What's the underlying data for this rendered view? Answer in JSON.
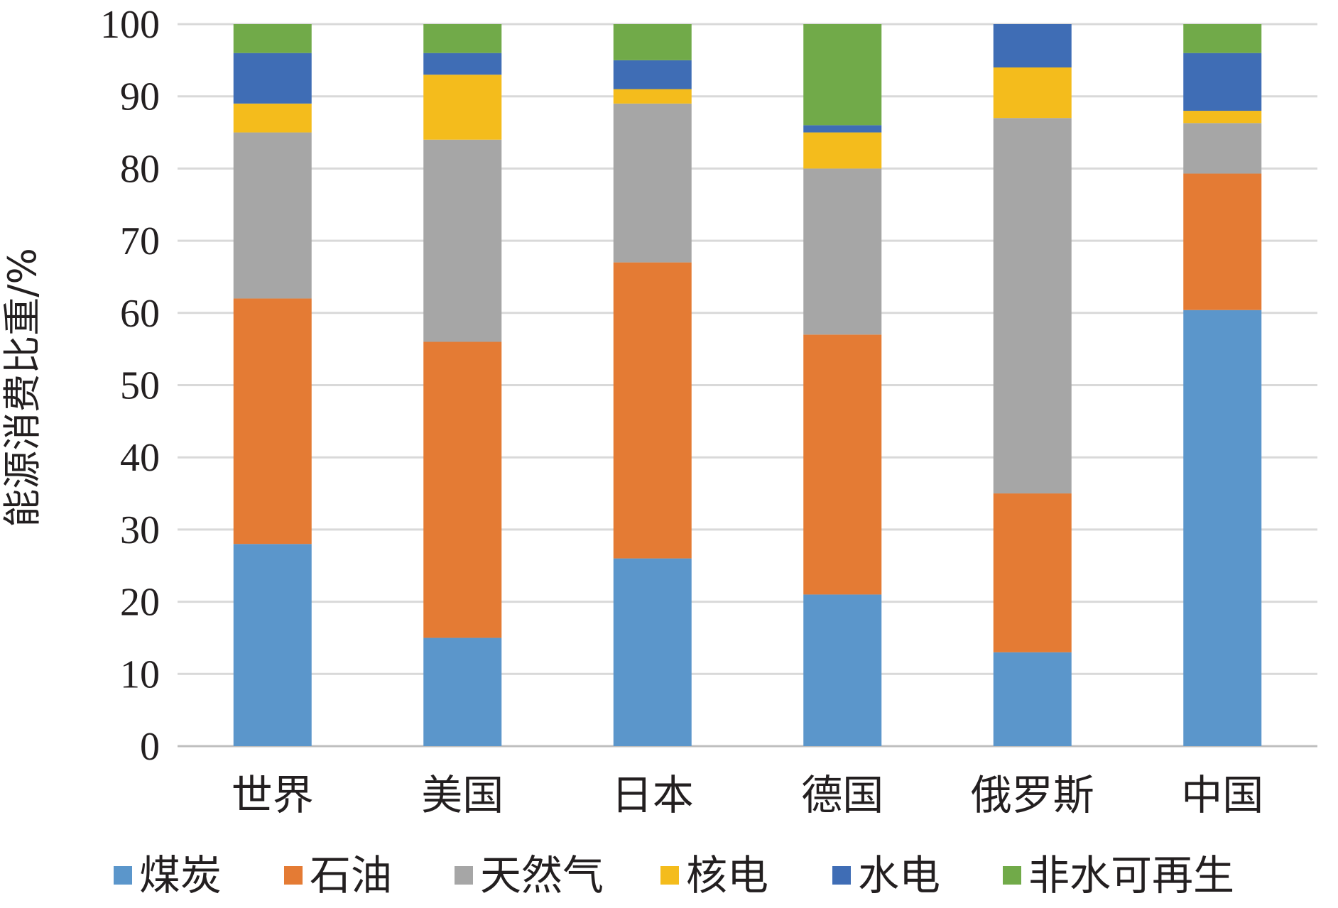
{
  "chart_data": {
    "type": "bar",
    "stacked": true,
    "title": "",
    "xlabel": "",
    "ylabel": "能源消费比重/%",
    "ylim": [
      0,
      100
    ],
    "yticks": [
      0,
      10,
      20,
      30,
      40,
      50,
      60,
      70,
      80,
      90,
      100
    ],
    "grid": true,
    "legend_position": "bottom",
    "categories": [
      "世界",
      "美国",
      "日本",
      "德国",
      "俄罗斯",
      "中国"
    ],
    "series": [
      {
        "name": "煤炭",
        "color": "#5b96cb",
        "values": [
          28,
          15,
          26,
          21,
          13,
          60.4
        ]
      },
      {
        "name": "石油",
        "color": "#e47b34",
        "values": [
          34,
          41,
          41,
          36,
          22,
          18.9
        ]
      },
      {
        "name": "天然气",
        "color": "#a6a6a6",
        "values": [
          23,
          28,
          22,
          23,
          52,
          7
        ]
      },
      {
        "name": "核电",
        "color": "#f4bc1c",
        "values": [
          4,
          9,
          2,
          5,
          7,
          1.7
        ]
      },
      {
        "name": "水电",
        "color": "#3f6db5",
        "values": [
          7,
          3,
          4,
          1,
          6,
          8
        ]
      },
      {
        "name": "非水可再生",
        "color": "#71aa49",
        "values": [
          4,
          4,
          5,
          14,
          0,
          4
        ]
      }
    ]
  }
}
